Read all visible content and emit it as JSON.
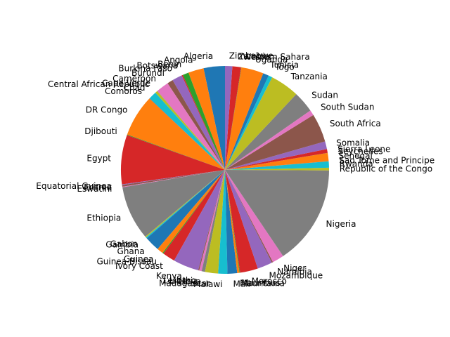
{
  "chart_data": {
    "type": "pie",
    "title": "",
    "start_angle_deg": 90,
    "direction": "counterclockwise",
    "palette": [
      "#1f77b4",
      "#ff7f0e",
      "#2ca02c",
      "#d62728",
      "#9467bd",
      "#8c564b",
      "#e377c2",
      "#7f7f7f",
      "#bcbd22",
      "#17becf"
    ],
    "labels": [
      "Algeria",
      "Angola",
      "Benin",
      "Botswana",
      "Burkina Faso",
      "Burundi",
      "Cameroon",
      "Cape Verde",
      "Central African Republic",
      "Chad",
      "Comoros",
      "DR Congo",
      "Djibouti",
      "Egypt",
      "Equatorial Guinea",
      "Eritrea",
      "Eswatini",
      "Ethiopia",
      "Gabon",
      "Gambia",
      "Ghana",
      "Guinea",
      "Guinea-Bissau",
      "Ivory Coast",
      "Kenya",
      "Lesotho",
      "Liberia",
      "Libya",
      "Madagascar",
      "Malawi",
      "Mali",
      "Mauritania",
      "Mauritius",
      "Morocco",
      "Mozambique",
      "Namibia",
      "Niger",
      "Nigeria",
      "Republic of the Congo",
      "Rwanda",
      "Sao Tome and Principe",
      "Senegal",
      "Seychelles",
      "Sierra Leone",
      "Somalia",
      "South Africa",
      "South Sudan",
      "Sudan",
      "Tanzania",
      "Togo",
      "Tunisia",
      "Uganda",
      "Western Sahara",
      "Zambia",
      "Zimbabwe"
    ],
    "values": [
      44.0,
      32.0,
      12.5,
      2.3,
      21.0,
      12.0,
      26.0,
      0.55,
      4.8,
      16.0,
      0.85,
      87.0,
      1.0,
      102.0,
      1.4,
      3.5,
      1.2,
      112.0,
      2.2,
      2.4,
      31.0,
      13.0,
      2.0,
      26.0,
      53.0,
      2.1,
      5.0,
      7.0,
      27.0,
      19.0,
      20.0,
      4.6,
      1.3,
      37.0,
      31.0,
      2.5,
      24.0,
      206.0,
      5.5,
      13.0,
      0.22,
      17.0,
      0.1,
      8.0,
      16.0,
      59.0,
      11.0,
      44.0,
      60.0,
      8.0,
      12.0,
      46.0,
      0.6,
      18.0,
      15.0
    ]
  }
}
